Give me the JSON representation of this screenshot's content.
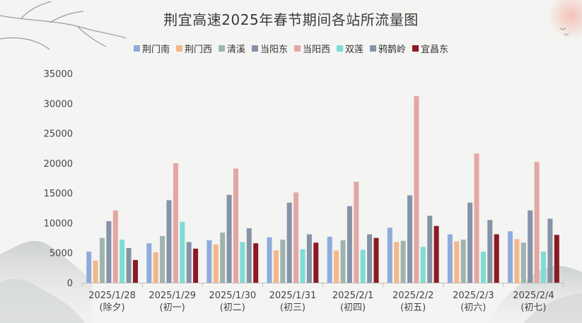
{
  "title": "荆宜高速2025年春节期间各站所流量图",
  "chart_data": {
    "type": "bar",
    "title": "荆宜高速2025年春节期间各站所流量图",
    "xlabel": "",
    "ylabel": "",
    "ylim": [
      0,
      35000
    ],
    "yticks": [
      0,
      5000,
      10000,
      15000,
      20000,
      25000,
      30000,
      35000
    ],
    "legend_position": "top-center",
    "grid": false,
    "categories": [
      [
        "2025/1/28",
        "(除夕)"
      ],
      [
        "2025/1/29",
        "(初一)"
      ],
      [
        "2025/1/30",
        "(初二)"
      ],
      [
        "2025/1/31",
        "(初三)"
      ],
      [
        "2025/2/1",
        "(初四)"
      ],
      [
        "2025/2/2",
        "(初五)"
      ],
      [
        "2025/2/3",
        "(初六)"
      ],
      [
        "2025/2/4",
        "(初七)"
      ]
    ],
    "series": [
      {
        "name": "荆门南",
        "color": "#8eabdc",
        "values": [
          5200,
          6600,
          7100,
          7600,
          7700,
          9200,
          8100,
          8600
        ]
      },
      {
        "name": "荆门西",
        "color": "#f4b78a",
        "values": [
          3700,
          5100,
          6400,
          5400,
          5400,
          6800,
          6900,
          7300
        ]
      },
      {
        "name": "清溪",
        "color": "#9fb4ad",
        "values": [
          7500,
          7800,
          8400,
          7200,
          7100,
          7000,
          7200,
          6700
        ]
      },
      {
        "name": "当阳东",
        "color": "#8493a8",
        "values": [
          10300,
          13800,
          14700,
          13400,
          12800,
          14600,
          13400,
          12100
        ]
      },
      {
        "name": "当阳西",
        "color": "#e3a7a3",
        "values": [
          12100,
          20000,
          19100,
          15100,
          16900,
          31200,
          21600,
          20200
        ]
      },
      {
        "name": "双莲",
        "color": "#7fdcd3",
        "values": [
          7200,
          10200,
          6800,
          5600,
          5500,
          6000,
          5200,
          5200
        ]
      },
      {
        "name": "鸦鹊岭",
        "color": "#8593a6",
        "values": [
          5800,
          6800,
          9100,
          8100,
          8100,
          11200,
          10500,
          10700
        ]
      },
      {
        "name": "宜昌东",
        "color": "#8b1a24",
        "values": [
          3800,
          5700,
          6600,
          6700,
          7500,
          9500,
          8100,
          8000
        ]
      }
    ]
  }
}
